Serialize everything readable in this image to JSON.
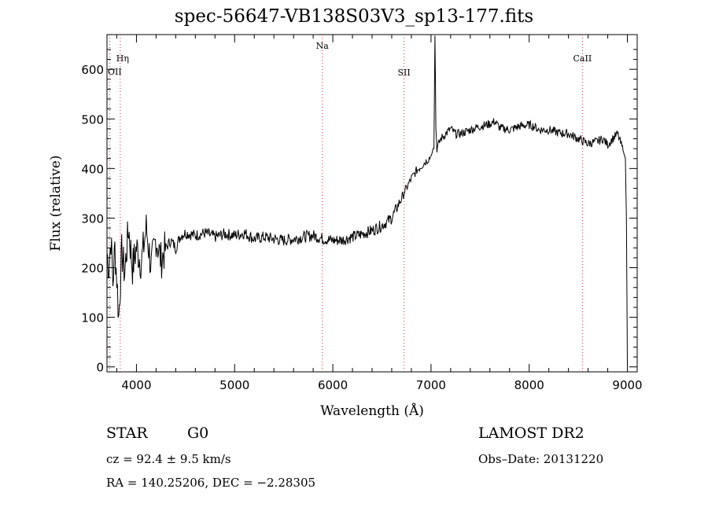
{
  "chart_data": {
    "type": "line",
    "title": "spec-56647-VB138S03V3_sp13-177.fits",
    "xlabel": "Wavelength (Å)",
    "ylabel": "Flux (relative)",
    "xlim": [
      3700,
      9100
    ],
    "ylim": [
      -10,
      670
    ],
    "x_ticks": [
      4000,
      5000,
      6000,
      7000,
      8000,
      9000
    ],
    "y_ticks": [
      0,
      100,
      200,
      300,
      400,
      500,
      600
    ],
    "grid": false,
    "series": [
      {
        "x": [
          3700,
          3720,
          3740,
          3760,
          3780,
          3800,
          3820,
          3850,
          3880,
          3920,
          3960,
          4000,
          4050,
          4100,
          4150,
          4200,
          4250,
          4300,
          4350,
          4400,
          4450,
          4500,
          4600,
          4700,
          4800,
          4900,
          5000,
          5100,
          5200,
          5300,
          5400,
          5500,
          5600,
          5700,
          5800,
          5900,
          6000,
          6100,
          6200,
          6300,
          6400,
          6500,
          6600,
          6650,
          6700,
          6750,
          6800,
          6850,
          6900,
          6950,
          7000,
          7010,
          7020,
          7030,
          7040,
          7050,
          7060,
          7080,
          7100,
          7150,
          7200,
          7250,
          7300,
          7400,
          7500,
          7600,
          7650,
          7700,
          7800,
          7900,
          8000,
          8050,
          8100,
          8200,
          8300,
          8400,
          8500,
          8600,
          8700,
          8750,
          8800,
          8850,
          8900,
          8950,
          8980,
          8990,
          9000
        ],
        "y": [
          230,
          200,
          260,
          170,
          240,
          180,
          100,
          230,
          190,
          280,
          200,
          240,
          210,
          280,
          200,
          260,
          215,
          240,
          255,
          240,
          265,
          270,
          265,
          270,
          262,
          268,
          265,
          270,
          258,
          262,
          258,
          255,
          258,
          262,
          265,
          258,
          255,
          256,
          262,
          268,
          275,
          285,
          300,
          320,
          340,
          360,
          380,
          395,
          405,
          415,
          425,
          430,
          440,
          440,
          680,
          480,
          440,
          450,
          460,
          470,
          480,
          470,
          470,
          478,
          485,
          490,
          495,
          482,
          478,
          485,
          488,
          485,
          478,
          478,
          472,
          470,
          460,
          450,
          455,
          460,
          448,
          460,
          470,
          440,
          420,
          300,
          5
        ]
      }
    ],
    "lines": [
      {
        "label": "Hη",
        "x": 3835
      },
      {
        "label": "OII",
        "x": 3727
      },
      {
        "label": "Na",
        "x": 5893
      },
      {
        "label": "SII",
        "x": 6725
      },
      {
        "label": "CaII",
        "x": 8542
      }
    ]
  },
  "info": {
    "class_label": "STAR",
    "subclass_label": "G0",
    "survey": "LAMOST DR2",
    "cz": "cz = 92.4 ± 9.5 km/s",
    "obs_date": "Obs–Date: 20131220",
    "radec": "RA = 140.25206, DEC =  −2.28305"
  }
}
